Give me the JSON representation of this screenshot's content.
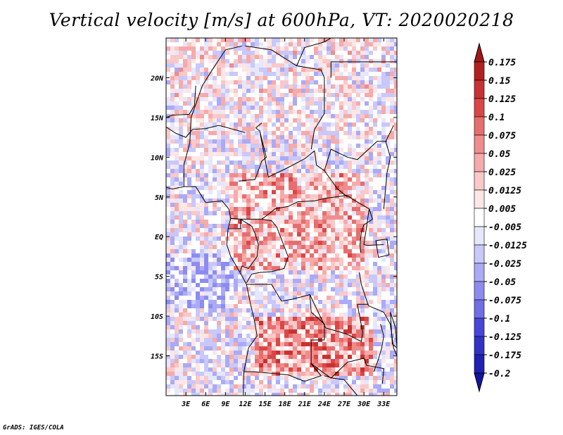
{
  "chart_data": {
    "type": "heatmap",
    "title": "Vertical velocity [m/s] at 600hPa, VT: 2020020218",
    "variable": "Vertical velocity",
    "units": "m/s",
    "level": "600hPa",
    "valid_time": "2020020218",
    "x_range": [
      0,
      35
    ],
    "y_range": [
      -20,
      25
    ],
    "x_ticks": [
      {
        "value": 3,
        "label": "3E"
      },
      {
        "value": 6,
        "label": "6E"
      },
      {
        "value": 9,
        "label": "9E"
      },
      {
        "value": 12,
        "label": "12E"
      },
      {
        "value": 15,
        "label": "15E"
      },
      {
        "value": 18,
        "label": "18E"
      },
      {
        "value": 21,
        "label": "21E"
      },
      {
        "value": 24,
        "label": "24E"
      },
      {
        "value": 27,
        "label": "27E"
      },
      {
        "value": 30,
        "label": "30E"
      },
      {
        "value": 33,
        "label": "33E"
      }
    ],
    "y_ticks": [
      {
        "value": 20,
        "label": "20N"
      },
      {
        "value": 15,
        "label": "15N"
      },
      {
        "value": 10,
        "label": "10N"
      },
      {
        "value": 5,
        "label": "5N"
      },
      {
        "value": 0,
        "label": "EQ"
      },
      {
        "value": -5,
        "label": "5S"
      },
      {
        "value": -10,
        "label": "10S"
      },
      {
        "value": -15,
        "label": "15S"
      }
    ],
    "colorbar": {
      "levels": [
        {
          "label": "0.175",
          "color": "#a01818"
        },
        {
          "label": "0.15",
          "color": "#b42020"
        },
        {
          "label": "0.125",
          "color": "#c83232"
        },
        {
          "label": "0.1",
          "color": "#dc4646"
        },
        {
          "label": "0.075",
          "color": "#e66e6e"
        },
        {
          "label": "0.05",
          "color": "#f08c8c"
        },
        {
          "label": "0.025",
          "color": "#f6aaaa"
        },
        {
          "label": "0.0125",
          "color": "#fac8c8"
        },
        {
          "label": "0.005",
          "color": "#fde6e6"
        },
        {
          "label": "-0.005",
          "color": "#ffffff"
        },
        {
          "label": "-0.0125",
          "color": "#e6e6fd"
        },
        {
          "label": "-0.025",
          "color": "#c8c8fa"
        },
        {
          "label": "-0.05",
          "color": "#aaaaf6"
        },
        {
          "label": "-0.075",
          "color": "#8c8cf0"
        },
        {
          "label": "-0.1",
          "color": "#6e6ee6"
        },
        {
          "label": "-0.125",
          "color": "#4646dc"
        },
        {
          "label": "-0.175",
          "color": "#3232c8"
        },
        {
          "label": "-0.2",
          "color": "#2020b4"
        }
      ],
      "top_color": "#a01818",
      "bottom_color": "#1414a0"
    }
  },
  "footer": {
    "credit": "GrADS: IGES/COLA"
  }
}
